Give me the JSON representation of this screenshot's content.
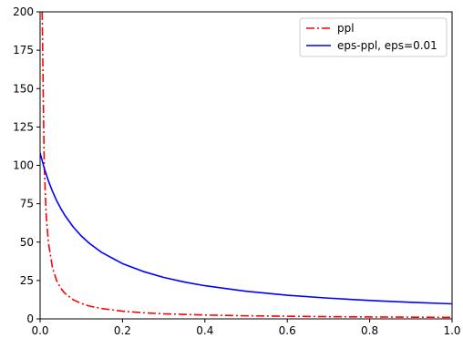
{
  "chart_data": {
    "type": "line",
    "xlim": [
      0.0,
      1.0
    ],
    "ylim": [
      0,
      200
    ],
    "x_ticks": [
      0.0,
      0.2,
      0.4,
      0.6,
      0.8,
      1.0
    ],
    "x_tick_labels": [
      "0.0",
      "0.2",
      "0.4",
      "0.6",
      "0.8",
      "1.0"
    ],
    "y_ticks": [
      0,
      25,
      50,
      75,
      100,
      125,
      150,
      175,
      200
    ],
    "y_tick_labels": [
      "0",
      "25",
      "50",
      "75",
      "100",
      "125",
      "150",
      "175",
      "200"
    ],
    "grid": false,
    "legend_position": "top-right",
    "series": [
      {
        "name": "ppl",
        "color": "#ff0000",
        "style": "dash-dot",
        "points": [
          [
            0.005,
            200
          ],
          [
            0.01,
            100
          ],
          [
            0.015,
            66.7
          ],
          [
            0.02,
            50
          ],
          [
            0.03,
            33.3
          ],
          [
            0.04,
            25
          ],
          [
            0.05,
            20
          ],
          [
            0.06,
            16.7
          ],
          [
            0.08,
            12.5
          ],
          [
            0.1,
            10
          ],
          [
            0.12,
            8.3
          ],
          [
            0.15,
            6.7
          ],
          [
            0.2,
            5
          ],
          [
            0.25,
            4
          ],
          [
            0.3,
            3.3
          ],
          [
            0.4,
            2.5
          ],
          [
            0.5,
            2
          ],
          [
            0.6,
            1.7
          ],
          [
            0.7,
            1.4
          ],
          [
            0.8,
            1.25
          ],
          [
            0.9,
            1.1
          ],
          [
            1.0,
            1.0
          ]
        ]
      },
      {
        "name": "eps-ppl, eps=0.01",
        "color": "#0000ff",
        "style": "solid",
        "points": [
          [
            0.0,
            108
          ],
          [
            0.01,
            98.2
          ],
          [
            0.02,
            90
          ],
          [
            0.03,
            83.1
          ],
          [
            0.04,
            77.1
          ],
          [
            0.05,
            72
          ],
          [
            0.06,
            67.5
          ],
          [
            0.08,
            60
          ],
          [
            0.1,
            54
          ],
          [
            0.12,
            49.1
          ],
          [
            0.15,
            43.2
          ],
          [
            0.2,
            36
          ],
          [
            0.25,
            30.9
          ],
          [
            0.3,
            27
          ],
          [
            0.35,
            24
          ],
          [
            0.4,
            21.6
          ],
          [
            0.5,
            18
          ],
          [
            0.6,
            15.4
          ],
          [
            0.7,
            13.5
          ],
          [
            0.8,
            12
          ],
          [
            0.9,
            10.8
          ],
          [
            1.0,
            9.8
          ]
        ]
      }
    ]
  }
}
